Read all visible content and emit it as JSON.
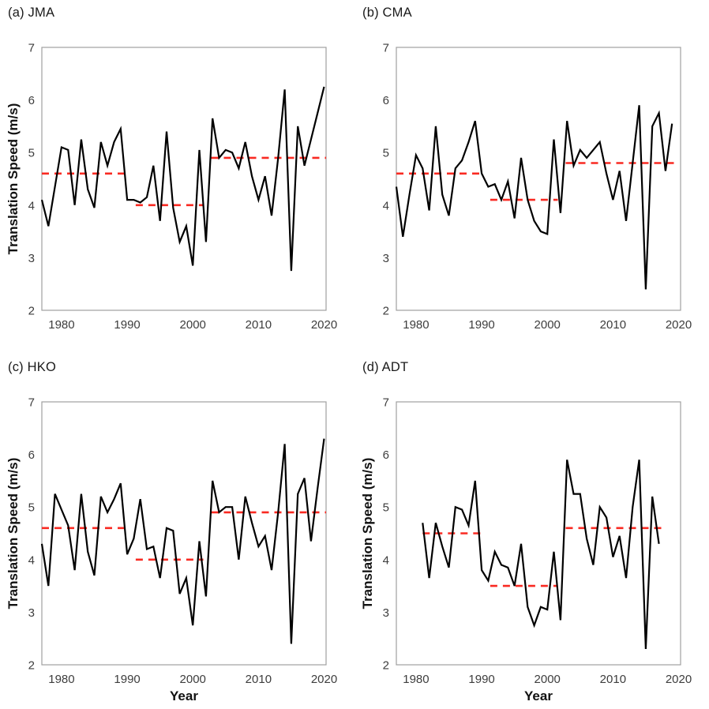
{
  "figure": {
    "background": "#ffffff",
    "description": "Four-panel time series of tropical cyclone translation speed from different agencies"
  },
  "style": {
    "line_color": "#000000",
    "mean_line_color": "#f92a22",
    "frame_color": "#a0a0a0",
    "tick_text_color": "#3d3d3d",
    "title_text_color": "#1a1a1a"
  },
  "axes": {
    "ylim": [
      2,
      7
    ],
    "xlim": [
      1977,
      2020.3
    ],
    "yticks": [
      2,
      3,
      4,
      5,
      6,
      7
    ],
    "xticks": [
      1980,
      1990,
      2000,
      2010,
      2020
    ],
    "grid": false,
    "legend": "none"
  },
  "chart_data": [
    {
      "id": "a",
      "type": "line",
      "title": "(a) JMA",
      "ylabel": "Translation Speed (m/s)",
      "xlabel": "",
      "x_start": 1977,
      "values": [
        4.1,
        3.6,
        4.35,
        5.1,
        5.05,
        4.0,
        5.25,
        4.3,
        3.95,
        5.2,
        4.75,
        5.2,
        5.45,
        4.1,
        4.1,
        4.05,
        4.15,
        4.75,
        3.7,
        5.4,
        3.95,
        3.3,
        3.6,
        2.85,
        5.05,
        3.3,
        5.65,
        4.9,
        5.05,
        5.0,
        4.7,
        5.2,
        4.55,
        4.1,
        4.55,
        3.8,
        4.9,
        6.2,
        2.75,
        5.5,
        4.75,
        5.25,
        5.75,
        6.25
      ],
      "mean_segments": [
        {
          "from": 1977,
          "to": 1990,
          "value": 4.6
        },
        {
          "from": 1991.3,
          "to": 2001.6,
          "value": 4.0
        },
        {
          "from": 2002.8,
          "to": 2020.3,
          "value": 4.9
        }
      ]
    },
    {
      "id": "b",
      "type": "line",
      "title": "(b) CMA",
      "ylabel": "",
      "xlabel": "",
      "x_start": 1977,
      "values": [
        4.35,
        3.4,
        4.2,
        4.95,
        4.7,
        3.9,
        5.5,
        4.2,
        3.8,
        4.7,
        4.85,
        5.2,
        5.6,
        4.6,
        4.35,
        4.4,
        4.1,
        4.45,
        3.75,
        4.9,
        4.1,
        3.7,
        3.5,
        3.45,
        5.25,
        3.85,
        5.6,
        4.75,
        5.05,
        4.9,
        5.05,
        5.2,
        4.6,
        4.1,
        4.65,
        3.7,
        4.8,
        5.9,
        2.4,
        5.5,
        5.75,
        4.65,
        5.55
      ],
      "mean_segments": [
        {
          "from": 1977,
          "to": 1990,
          "value": 4.6
        },
        {
          "from": 1991.3,
          "to": 2001.6,
          "value": 4.1
        },
        {
          "from": 2002.8,
          "to": 2020,
          "value": 4.8
        }
      ]
    },
    {
      "id": "c",
      "type": "line",
      "title": "(c) HKO",
      "ylabel": "Translation Speed (m/s)",
      "xlabel": "Year",
      "x_start": 1977,
      "values": [
        4.3,
        3.5,
        5.25,
        4.95,
        4.65,
        3.8,
        5.25,
        4.15,
        3.7,
        5.2,
        4.9,
        5.15,
        5.45,
        4.1,
        4.4,
        5.15,
        4.2,
        4.25,
        3.65,
        4.6,
        4.55,
        3.35,
        3.65,
        2.75,
        4.35,
        3.3,
        5.5,
        4.9,
        5.0,
        5.0,
        4.0,
        5.2,
        4.7,
        4.25,
        4.45,
        3.8,
        4.9,
        6.2,
        2.4,
        5.25,
        5.55,
        4.35,
        5.35,
        6.3
      ],
      "mean_segments": [
        {
          "from": 1977,
          "to": 1990,
          "value": 4.6
        },
        {
          "from": 1991.3,
          "to": 2001.6,
          "value": 4.0
        },
        {
          "from": 2002.8,
          "to": 2020.3,
          "value": 4.9
        }
      ]
    },
    {
      "id": "d",
      "type": "line",
      "title": "(d) ADT",
      "ylabel": "Translation Speed (m/s)",
      "xlabel": "Year",
      "x_start": 1981,
      "values": [
        4.7,
        3.65,
        4.7,
        4.25,
        3.85,
        5.0,
        4.95,
        4.65,
        5.5,
        3.8,
        3.6,
        4.15,
        3.9,
        3.85,
        3.5,
        4.3,
        3.1,
        2.75,
        3.1,
        3.05,
        4.15,
        2.85,
        5.9,
        5.25,
        5.25,
        4.4,
        3.9,
        5.0,
        4.8,
        4.05,
        4.45,
        3.65,
        5.0,
        5.9,
        2.3,
        5.2,
        4.3
      ],
      "mean_segments": [
        {
          "from": 1981,
          "to": 1990,
          "value": 4.5
        },
        {
          "from": 1991.3,
          "to": 2001.6,
          "value": 3.5
        },
        {
          "from": 2002.8,
          "to": 2017.5,
          "value": 4.6
        }
      ]
    }
  ]
}
